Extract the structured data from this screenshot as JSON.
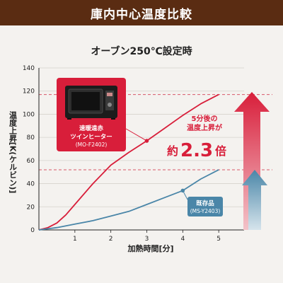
{
  "header": {
    "title": "庫内中心温度比較"
  },
  "subtitle": "オーブン250℃設定時",
  "colors": {
    "header_bg": "#5a2c12",
    "red": "#d81e3a",
    "blue": "#4a86a8",
    "dashed": "#d8586a"
  },
  "chart_data": {
    "type": "line",
    "title": "",
    "xlabel": "加熱時間[分]",
    "ylabel": "温度上昇[K(ケルビン)]",
    "xlim": [
      0,
      6
    ],
    "ylim": [
      0,
      140
    ],
    "xticks": [
      1,
      2,
      3,
      4,
      5
    ],
    "yticks": [
      0,
      20,
      40,
      60,
      80,
      100,
      120,
      140
    ],
    "series": [
      {
        "name": "速暖遠赤ツインヒーター",
        "model": "(MO-F2402)",
        "color": "#d81e3a",
        "points": [
          [
            0,
            0
          ],
          [
            0.25,
            2
          ],
          [
            0.5,
            6
          ],
          [
            0.75,
            13
          ],
          [
            1,
            22
          ],
          [
            1.5,
            40
          ],
          [
            2,
            56
          ],
          [
            2.5,
            67
          ],
          [
            3,
            77
          ],
          [
            3.5,
            88
          ],
          [
            4,
            99
          ],
          [
            4.5,
            109
          ],
          [
            5,
            117
          ]
        ]
      },
      {
        "name": "既存品",
        "model": "(MS-Y2403)",
        "color": "#4a86a8",
        "points": [
          [
            0,
            0
          ],
          [
            0.5,
            2
          ],
          [
            1,
            5
          ],
          [
            1.5,
            8
          ],
          [
            2,
            12
          ],
          [
            2.5,
            16
          ],
          [
            3,
            22
          ],
          [
            3.5,
            28
          ],
          [
            4,
            34
          ],
          [
            4.5,
            44
          ],
          [
            5,
            52
          ]
        ]
      }
    ],
    "annotations": {
      "reference_lines": [
        117,
        52
      ],
      "ratio_text": [
        "5分後の",
        "温度上昇が"
      ],
      "ratio_prefix": "約",
      "ratio_value": "2.3",
      "ratio_suffix": "倍"
    }
  }
}
